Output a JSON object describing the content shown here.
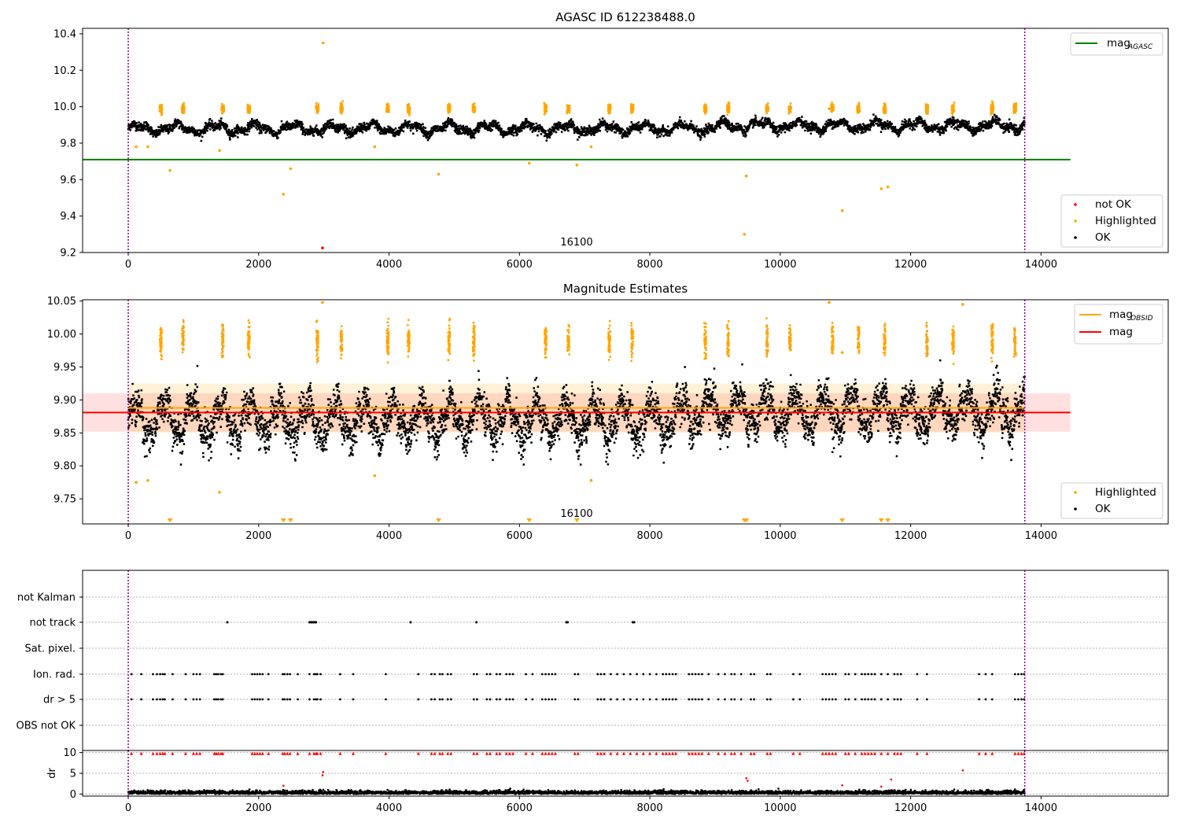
{
  "chart_data": [
    {
      "type": "scatter",
      "title": "AGASC ID 612238488.0",
      "obsid_annotation": "16100",
      "xlim": [
        -700,
        15950
      ],
      "ylim": [
        9.2,
        10.43
      ],
      "x_ticks": [
        "0",
        "2000",
        "4000",
        "6000",
        "8000",
        "10000",
        "12000",
        "14000"
      ],
      "y_ticks": [
        "9.2",
        "9.4",
        "9.6",
        "9.8",
        "10.0",
        "10.2",
        "10.4"
      ],
      "vlines": [
        0,
        13750
      ],
      "reference_line": {
        "label_main": "mag",
        "label_sub": "AGASC",
        "value": 9.71,
        "x_range": [
          -700,
          14450
        ],
        "color": "#008000"
      },
      "series_legend": [
        {
          "name": "not OK",
          "color": "#ff0000"
        },
        {
          "name": "Highlighted",
          "color": "#ffa500"
        },
        {
          "name": "OK",
          "color": "#000000"
        }
      ],
      "ok_baseline": 9.88,
      "ok_amplitude": 0.035,
      "highlight_bands_x": [
        500,
        840,
        1450,
        1850,
        2900,
        3270,
        3980,
        4300,
        4920,
        5300,
        6400,
        6750,
        7380,
        7730,
        8850,
        9200,
        9800,
        10150,
        10800,
        11200,
        11600,
        12250,
        12650,
        13250,
        13600
      ],
      "highlighted_points": [
        [
          120,
          9.78
        ],
        [
          300,
          9.78
        ],
        [
          1400,
          9.76
        ],
        [
          640,
          9.65
        ],
        [
          2380,
          9.52
        ],
        [
          2490,
          9.66
        ],
        [
          2990,
          10.35
        ],
        [
          3780,
          9.78
        ],
        [
          4760,
          9.63
        ],
        [
          6150,
          9.69
        ],
        [
          6880,
          9.68
        ],
        [
          7100,
          9.78
        ],
        [
          9450,
          9.3
        ],
        [
          9480,
          9.62
        ],
        [
          10950,
          9.43
        ],
        [
          11550,
          9.55
        ],
        [
          11650,
          9.56
        ],
        [
          10750,
          9.99
        ]
      ],
      "not_ok_points": [
        [
          2980,
          9.225
        ]
      ]
    },
    {
      "type": "scatter",
      "title": "Magnitude Estimates",
      "obsid_annotation": "16100",
      "xlim": [
        -700,
        15950
      ],
      "ylim": [
        9.712,
        10.052
      ],
      "x_ticks": [
        "0",
        "2000",
        "4000",
        "6000",
        "8000",
        "10000",
        "12000",
        "14000"
      ],
      "y_ticks": [
        "9.75",
        "9.80",
        "9.85",
        "9.90",
        "9.95",
        "10.00",
        "10.05"
      ],
      "vlines": [
        0,
        13750
      ],
      "mag_obsid": {
        "label_main": "mag",
        "label_sub": "OBSID",
        "value": 9.888,
        "band": [
          9.85,
          9.925
        ],
        "x_range": [
          0,
          13750
        ],
        "color": "#ffa500"
      },
      "mag": {
        "label": "mag",
        "value": 9.881,
        "band": [
          9.852,
          9.91
        ],
        "x_range": [
          -700,
          14450
        ],
        "color": "#ff0000"
      },
      "series_legend": [
        {
          "name": "Highlighted",
          "color": "#ffa500"
        },
        {
          "name": "OK",
          "color": "#000000"
        }
      ],
      "ok_baseline": 9.87,
      "ok_amplitude": 0.03,
      "highlight_bands_x": [
        500,
        840,
        1450,
        1850,
        2900,
        3270,
        3980,
        4300,
        4920,
        5300,
        6400,
        6750,
        7380,
        7730,
        8850,
        9200,
        9800,
        10150,
        10800,
        11200,
        11600,
        12250,
        12650,
        13250,
        13600
      ],
      "below_range_markers_x": [
        640,
        2380,
        2490,
        4760,
        6150,
        6880,
        9450,
        9480,
        10950,
        11550,
        11650
      ],
      "highlighted_points": [
        [
          120,
          9.775
        ],
        [
          300,
          9.778
        ],
        [
          1400,
          9.76
        ],
        [
          3780,
          9.785
        ],
        [
          7100,
          9.778
        ],
        [
          2980,
          10.048
        ],
        [
          10750,
          10.048
        ],
        [
          12800,
          10.045
        ],
        [
          10950,
          9.972
        ]
      ]
    },
    {
      "type": "scatter",
      "title": "",
      "xlim": [
        -700,
        15950
      ],
      "categories": [
        "not Kalman",
        "not track",
        "Sat. pixel.",
        "Ion. rad.",
        "dr > 5",
        "OBS not OK"
      ],
      "not_track_x": [
        1520,
        2780,
        2800,
        2820,
        2840,
        2860,
        2880,
        4330,
        5340,
        6720,
        6740,
        7740,
        7760
      ],
      "flag_x": [
        50,
        200,
        380,
        440,
        490,
        530,
        560,
        680,
        880,
        1000,
        1050,
        1100,
        1320,
        1350,
        1380,
        1420,
        1450,
        1900,
        1940,
        1980,
        2020,
        2060,
        2150,
        2370,
        2400,
        2440,
        2480,
        2600,
        2780,
        2850,
        2880,
        2900,
        2950,
        3250,
        3450,
        3950,
        4450,
        4650,
        4700,
        4780,
        4820,
        4900,
        4950,
        5300,
        5350,
        5500,
        5550,
        5650,
        5700,
        5800,
        5850,
        5900,
        6100,
        6200,
        6350,
        6400,
        6450,
        6500,
        6550,
        6850,
        6900,
        7200,
        7250,
        7300,
        7400,
        7500,
        7600,
        7700,
        7800,
        7900,
        8000,
        8100,
        8200,
        8250,
        8300,
        8350,
        8400,
        8600,
        8650,
        8700,
        8750,
        8800,
        8900,
        9050,
        9150,
        9250,
        9300,
        9400,
        9550,
        9600,
        9800,
        9850,
        10200,
        10300,
        10650,
        10700,
        10750,
        10800,
        10850,
        11000,
        11050,
        11150,
        11250,
        11300,
        11350,
        11400,
        11450,
        11550,
        11650,
        11750,
        11800,
        11850,
        12100,
        12250,
        13050,
        13150,
        13250,
        13600,
        13650,
        13700,
        13740
      ],
      "dr": {
        "ylabel": "dr",
        "ylim": [
          -0.5,
          10.5
        ],
        "y_ticks": [
          "0",
          "5",
          "10"
        ],
        "clipped_points_y": 9.8,
        "stray_points": [
          [
            2980,
            4.5
          ],
          [
            2990,
            5.3
          ],
          [
            9480,
            3.8
          ],
          [
            9500,
            3.2
          ],
          [
            11700,
            3.5
          ],
          [
            12800,
            5.7
          ],
          [
            2380,
            2.0
          ],
          [
            10950,
            2.1
          ],
          [
            11550,
            1.8
          ]
        ]
      }
    }
  ]
}
